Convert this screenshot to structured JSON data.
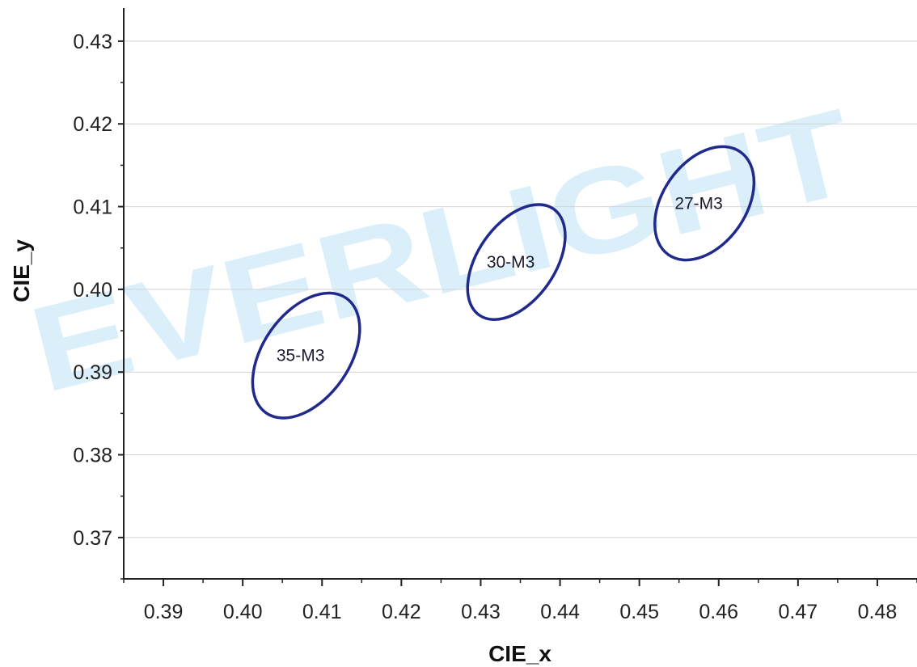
{
  "chart_data": {
    "type": "scatter",
    "title": "",
    "xlabel": "CIE_x",
    "ylabel": "CIE_y",
    "xlim": [
      0.385,
      0.485
    ],
    "ylim": [
      0.365,
      0.434
    ],
    "xticks": [
      "0.39",
      "0.40",
      "0.41",
      "0.42",
      "0.43",
      "0.44",
      "0.45",
      "0.46",
      "0.47",
      "0.48"
    ],
    "yticks": [
      "0.37",
      "0.38",
      "0.39",
      "0.40",
      "0.41",
      "0.42",
      "0.43"
    ],
    "grid": "horizontal",
    "watermark": "EVERLIGHT",
    "series": [
      {
        "name": "35-M3",
        "center": [
          0.408,
          0.392
        ],
        "width_x": 0.0135,
        "height_y": 0.0151,
        "label": "35-M3"
      },
      {
        "name": "30-M3",
        "center": [
          0.4345,
          0.4033
        ],
        "width_x": 0.0123,
        "height_y": 0.0139,
        "label": "30-M3"
      },
      {
        "name": "27-M3",
        "center": [
          0.4582,
          0.4104
        ],
        "width_x": 0.0125,
        "height_y": 0.0137,
        "label": "27-M3"
      }
    ],
    "colors": {
      "ellipse": "#1f2a8c",
      "grid": "#d4d4d4",
      "axis": "#222222",
      "watermark": "#1ea0e0"
    }
  }
}
